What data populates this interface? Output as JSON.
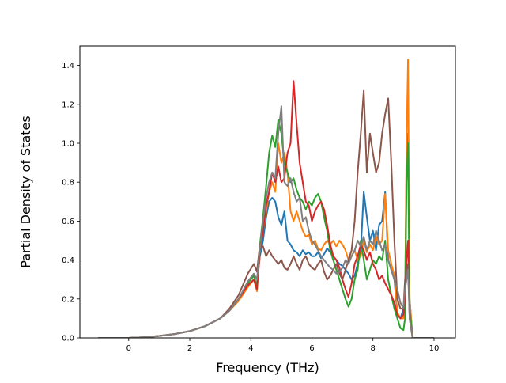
{
  "chart_data": {
    "type": "line",
    "xlabel": "Frequency (THz)",
    "ylabel": "Partial Density of States",
    "xlim": [
      -1.6,
      10.7
    ],
    "ylim": [
      0.0,
      1.5
    ],
    "xticks": [
      0,
      2,
      4,
      6,
      8,
      10
    ],
    "yticks": [
      0.0,
      0.2,
      0.4,
      0.6,
      0.8,
      1.0,
      1.2,
      1.4
    ],
    "grid": false,
    "series": [
      {
        "color": "#1f77b4",
        "x": [
          -1.0,
          0.0,
          0.5,
          1.0,
          1.5,
          2.0,
          2.5,
          3.0,
          3.3,
          3.6,
          3.9,
          4.1,
          4.2,
          4.3,
          4.4,
          4.5,
          4.6,
          4.7,
          4.8,
          4.9,
          5.0,
          5.1,
          5.2,
          5.3,
          5.4,
          5.5,
          5.6,
          5.7,
          5.8,
          5.9,
          6.0,
          6.1,
          6.2,
          6.3,
          6.4,
          6.5,
          6.6,
          6.7,
          6.8,
          6.9,
          7.0,
          7.1,
          7.2,
          7.3,
          7.4,
          7.5,
          7.6,
          7.7,
          7.8,
          7.9,
          8.0,
          8.1,
          8.2,
          8.3,
          8.4,
          8.5,
          8.6,
          8.7,
          8.8,
          8.9,
          9.0,
          9.05,
          9.1,
          9.15,
          9.2,
          9.3,
          10.0
        ],
        "values": [
          0.0,
          0.0,
          0.003,
          0.01,
          0.02,
          0.035,
          0.06,
          0.1,
          0.14,
          0.2,
          0.27,
          0.3,
          0.28,
          0.42,
          0.5,
          0.62,
          0.7,
          0.72,
          0.7,
          0.62,
          0.58,
          0.65,
          0.5,
          0.48,
          0.45,
          0.44,
          0.42,
          0.45,
          0.43,
          0.44,
          0.42,
          0.42,
          0.44,
          0.41,
          0.43,
          0.46,
          0.44,
          0.42,
          0.4,
          0.38,
          0.37,
          0.35,
          0.33,
          0.3,
          0.32,
          0.38,
          0.45,
          0.75,
          0.62,
          0.5,
          0.55,
          0.45,
          0.58,
          0.6,
          0.75,
          0.4,
          0.35,
          0.3,
          0.12,
          0.1,
          0.15,
          0.2,
          0.9,
          1.05,
          0.2,
          0.0,
          0.0
        ]
      },
      {
        "color": "#ff7f0e",
        "x": [
          -1.0,
          0.0,
          0.5,
          1.0,
          1.5,
          2.0,
          2.5,
          3.0,
          3.3,
          3.6,
          3.9,
          4.1,
          4.2,
          4.3,
          4.4,
          4.5,
          4.6,
          4.7,
          4.8,
          4.9,
          5.0,
          5.1,
          5.2,
          5.3,
          5.4,
          5.5,
          5.6,
          5.7,
          5.8,
          5.9,
          6.0,
          6.1,
          6.2,
          6.3,
          6.4,
          6.5,
          6.6,
          6.7,
          6.8,
          6.9,
          7.0,
          7.1,
          7.2,
          7.3,
          7.4,
          7.5,
          7.6,
          7.7,
          7.8,
          7.9,
          8.0,
          8.1,
          8.2,
          8.3,
          8.4,
          8.5,
          8.6,
          8.7,
          8.8,
          8.9,
          9.0,
          9.05,
          9.1,
          9.15,
          9.2,
          9.3,
          10.0
        ],
        "values": [
          0.0,
          0.0,
          0.003,
          0.01,
          0.02,
          0.035,
          0.06,
          0.1,
          0.14,
          0.19,
          0.26,
          0.3,
          0.24,
          0.45,
          0.55,
          0.65,
          0.75,
          0.8,
          0.75,
          1.0,
          0.9,
          0.95,
          0.85,
          0.65,
          0.6,
          0.65,
          0.6,
          0.55,
          0.52,
          0.53,
          0.48,
          0.5,
          0.46,
          0.45,
          0.48,
          0.5,
          0.48,
          0.5,
          0.47,
          0.5,
          0.48,
          0.45,
          0.4,
          0.42,
          0.45,
          0.4,
          0.42,
          0.5,
          0.44,
          0.48,
          0.45,
          0.52,
          0.48,
          0.5,
          0.74,
          0.45,
          0.38,
          0.32,
          0.13,
          0.1,
          0.1,
          0.15,
          1.0,
          1.43,
          0.2,
          0.0,
          0.0
        ]
      },
      {
        "color": "#2ca02c",
        "x": [
          -1.0,
          0.0,
          0.5,
          1.0,
          1.5,
          2.0,
          2.5,
          3.0,
          3.3,
          3.6,
          3.9,
          4.1,
          4.2,
          4.3,
          4.4,
          4.5,
          4.6,
          4.7,
          4.8,
          4.9,
          5.0,
          5.1,
          5.2,
          5.3,
          5.4,
          5.5,
          5.6,
          5.7,
          5.8,
          5.9,
          6.0,
          6.1,
          6.2,
          6.3,
          6.4,
          6.5,
          6.6,
          6.7,
          6.8,
          6.9,
          7.0,
          7.1,
          7.2,
          7.3,
          7.4,
          7.5,
          7.6,
          7.7,
          7.8,
          7.9,
          8.0,
          8.1,
          8.2,
          8.3,
          8.4,
          8.5,
          8.6,
          8.7,
          8.8,
          8.9,
          9.0,
          9.05,
          9.1,
          9.15,
          9.2,
          9.3,
          10.0
        ],
        "values": [
          0.0,
          0.0,
          0.003,
          0.01,
          0.02,
          0.035,
          0.06,
          0.1,
          0.14,
          0.2,
          0.28,
          0.32,
          0.26,
          0.48,
          0.62,
          0.78,
          0.95,
          1.04,
          0.98,
          1.12,
          1.05,
          0.9,
          0.85,
          0.8,
          0.82,
          0.76,
          0.72,
          0.7,
          0.66,
          0.7,
          0.68,
          0.72,
          0.74,
          0.7,
          0.62,
          0.55,
          0.45,
          0.4,
          0.35,
          0.3,
          0.25,
          0.2,
          0.16,
          0.2,
          0.3,
          0.35,
          0.5,
          0.4,
          0.3,
          0.35,
          0.4,
          0.38,
          0.42,
          0.4,
          0.5,
          0.3,
          0.22,
          0.15,
          0.1,
          0.05,
          0.04,
          0.1,
          0.8,
          1.0,
          0.15,
          0.0,
          0.0
        ]
      },
      {
        "color": "#d62728",
        "x": [
          -1.0,
          0.0,
          0.5,
          1.0,
          1.5,
          2.0,
          2.5,
          3.0,
          3.3,
          3.6,
          3.9,
          4.1,
          4.2,
          4.3,
          4.4,
          4.5,
          4.6,
          4.7,
          4.8,
          4.9,
          5.0,
          5.1,
          5.2,
          5.3,
          5.4,
          5.5,
          5.6,
          5.7,
          5.8,
          5.9,
          6.0,
          6.1,
          6.2,
          6.3,
          6.4,
          6.5,
          6.6,
          6.7,
          6.8,
          6.9,
          7.0,
          7.1,
          7.2,
          7.3,
          7.4,
          7.5,
          7.6,
          7.7,
          7.8,
          7.9,
          8.0,
          8.1,
          8.2,
          8.3,
          8.4,
          8.5,
          8.6,
          8.7,
          8.8,
          8.9,
          9.0,
          9.05,
          9.1,
          9.15,
          9.2,
          9.3,
          10.0
        ],
        "values": [
          0.0,
          0.0,
          0.003,
          0.01,
          0.02,
          0.035,
          0.06,
          0.1,
          0.14,
          0.2,
          0.27,
          0.3,
          0.25,
          0.45,
          0.55,
          0.68,
          0.75,
          0.85,
          0.8,
          0.88,
          0.8,
          0.82,
          0.95,
          1.0,
          1.32,
          1.1,
          0.9,
          0.8,
          0.7,
          0.68,
          0.6,
          0.65,
          0.68,
          0.7,
          0.66,
          0.58,
          0.48,
          0.42,
          0.4,
          0.36,
          0.3,
          0.25,
          0.21,
          0.28,
          0.38,
          0.42,
          0.48,
          0.45,
          0.4,
          0.44,
          0.38,
          0.35,
          0.3,
          0.32,
          0.28,
          0.25,
          0.22,
          0.18,
          0.12,
          0.1,
          0.12,
          0.2,
          0.4,
          0.5,
          0.1,
          0.0,
          0.0
        ]
      },
      {
        "color": "#8c564b",
        "x": [
          -1.0,
          0.0,
          0.5,
          1.0,
          1.5,
          2.0,
          2.5,
          3.0,
          3.3,
          3.6,
          3.9,
          4.1,
          4.2,
          4.3,
          4.4,
          4.5,
          4.6,
          4.7,
          4.8,
          4.9,
          5.0,
          5.1,
          5.2,
          5.3,
          5.4,
          5.5,
          5.6,
          5.7,
          5.8,
          5.9,
          6.0,
          6.1,
          6.2,
          6.3,
          6.4,
          6.5,
          6.6,
          6.7,
          6.8,
          6.9,
          7.0,
          7.1,
          7.2,
          7.3,
          7.4,
          7.5,
          7.6,
          7.7,
          7.8,
          7.9,
          8.0,
          8.1,
          8.2,
          8.3,
          8.4,
          8.5,
          8.6,
          8.7,
          8.8,
          8.9,
          9.0,
          9.05,
          9.1,
          9.15,
          9.2,
          9.3,
          10.0
        ],
        "values": [
          0.0,
          0.0,
          0.003,
          0.01,
          0.02,
          0.035,
          0.06,
          0.1,
          0.15,
          0.22,
          0.33,
          0.38,
          0.34,
          0.48,
          0.47,
          0.42,
          0.45,
          0.42,
          0.4,
          0.38,
          0.4,
          0.36,
          0.35,
          0.38,
          0.42,
          0.38,
          0.35,
          0.4,
          0.42,
          0.38,
          0.36,
          0.35,
          0.38,
          0.4,
          0.34,
          0.3,
          0.32,
          0.35,
          0.38,
          0.33,
          0.3,
          0.35,
          0.4,
          0.45,
          0.6,
          0.85,
          1.05,
          1.27,
          0.85,
          1.05,
          0.95,
          0.85,
          0.9,
          1.05,
          1.15,
          1.23,
          0.9,
          0.5,
          0.2,
          0.15,
          0.15,
          0.3,
          0.35,
          0.38,
          0.1,
          0.0,
          0.0
        ]
      },
      {
        "color": "#7f7f7f",
        "x": [
          -1.0,
          0.0,
          0.5,
          1.0,
          1.5,
          2.0,
          2.5,
          3.0,
          3.3,
          3.6,
          3.9,
          4.1,
          4.2,
          4.3,
          4.4,
          4.5,
          4.6,
          4.7,
          4.8,
          4.9,
          5.0,
          5.1,
          5.2,
          5.3,
          5.4,
          5.5,
          5.6,
          5.7,
          5.8,
          5.9,
          6.0,
          6.1,
          6.2,
          6.3,
          6.4,
          6.5,
          6.6,
          6.7,
          6.8,
          6.9,
          7.0,
          7.1,
          7.2,
          7.3,
          7.4,
          7.5,
          7.6,
          7.7,
          7.8,
          7.9,
          8.0,
          8.1,
          8.2,
          8.3,
          8.4,
          8.5,
          8.6,
          8.7,
          8.8,
          8.9,
          9.0,
          9.05,
          9.1,
          9.15,
          9.2,
          9.3,
          10.0
        ],
        "values": [
          0.0,
          0.0,
          0.003,
          0.01,
          0.02,
          0.035,
          0.06,
          0.1,
          0.14,
          0.2,
          0.29,
          0.33,
          0.3,
          0.46,
          0.6,
          0.72,
          0.8,
          0.85,
          0.82,
          1.05,
          1.19,
          0.8,
          0.78,
          0.82,
          0.75,
          0.7,
          0.72,
          0.6,
          0.62,
          0.55,
          0.5,
          0.48,
          0.45,
          0.42,
          0.4,
          0.38,
          0.36,
          0.35,
          0.33,
          0.34,
          0.36,
          0.4,
          0.38,
          0.42,
          0.45,
          0.5,
          0.47,
          0.52,
          0.45,
          0.5,
          0.48,
          0.55,
          0.5,
          0.45,
          0.48,
          0.4,
          0.35,
          0.3,
          0.25,
          0.18,
          0.15,
          0.25,
          0.3,
          0.35,
          0.1,
          0.0,
          0.0
        ]
      }
    ]
  }
}
